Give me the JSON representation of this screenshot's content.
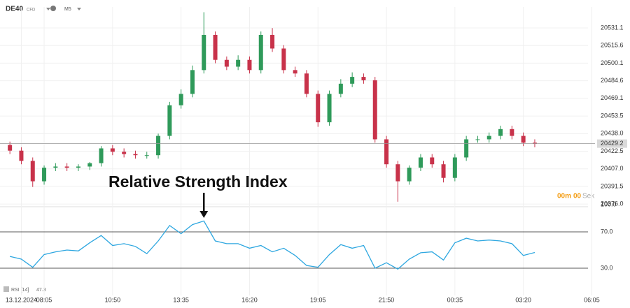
{
  "header": {
    "symbol": "DE40",
    "instrument_type": "CFD",
    "timeframe": "M5"
  },
  "chart_data": [
    {
      "type": "candlestick",
      "categories": [
        null,
        "13.12.2024",
        null,
        "08:05",
        null,
        null,
        null,
        null,
        null,
        "10:50",
        null,
        null,
        null,
        null,
        null,
        "13:35",
        null,
        null,
        null,
        null,
        null,
        "16:20",
        null,
        null,
        null,
        null,
        null,
        "19:05",
        null,
        null,
        null,
        null,
        null,
        "21:50",
        null,
        null,
        null,
        null,
        null,
        "00:35",
        null,
        null,
        null,
        null,
        null,
        "03:20",
        null,
        null,
        null,
        null,
        null,
        "06:05"
      ],
      "open": [
        20428,
        20423,
        20414,
        20396,
        20408,
        20409,
        20408,
        20409,
        20412,
        20425,
        20422,
        20420,
        20419,
        20419,
        20436,
        20463,
        20473,
        20494,
        20525,
        20503,
        20497,
        20503,
        20494,
        20525,
        20513,
        20494,
        20491,
        20473,
        20448,
        20473,
        20482,
        20488,
        20485,
        20433,
        20411,
        20396,
        20408,
        20417,
        20411,
        20399,
        20417,
        20433,
        20433,
        20436,
        20442,
        20436,
        20430,
        null,
        null,
        null,
        null,
        null
      ],
      "high": [
        20431,
        20426,
        20417,
        20410,
        20412,
        20412,
        20411,
        20413,
        20427,
        20428,
        20425,
        20423,
        20422,
        20438,
        20466,
        20477,
        20498,
        20545,
        20528,
        20506,
        20507,
        20506,
        20528,
        20531,
        20516,
        20497,
        20494,
        20476,
        20476,
        20486,
        20492,
        20491,
        20488,
        20436,
        20414,
        20410,
        20420,
        20420,
        20414,
        20420,
        20436,
        20436,
        20439,
        20445,
        20445,
        20439,
        20433,
        null,
        null,
        null,
        null,
        null
      ],
      "low": [
        20420,
        20411,
        20391,
        20393,
        20405,
        20405,
        20405,
        20406,
        20409,
        20419,
        20417,
        20416,
        20416,
        20416,
        20433,
        20460,
        20470,
        20491,
        20500,
        20494,
        20494,
        20491,
        20491,
        20510,
        20491,
        20488,
        20470,
        20444,
        20445,
        20470,
        20479,
        20482,
        20430,
        20408,
        20378,
        20393,
        20405,
        20408,
        20395,
        20396,
        20414,
        20430,
        20430,
        20433,
        20433,
        20427,
        20426,
        null,
        null,
        null,
        null,
        null
      ],
      "close": [
        20423,
        20414,
        20396,
        20408,
        20409,
        20408,
        20409,
        20412,
        20425,
        20422,
        20420,
        20419,
        20419,
        20436,
        20463,
        20473,
        20494,
        20525,
        20503,
        20497,
        20503,
        20494,
        20525,
        20513,
        20494,
        20491,
        20473,
        20448,
        20473,
        20482,
        20488,
        20485,
        20433,
        20411,
        20396,
        20408,
        20417,
        20411,
        20399,
        20417,
        20433,
        20433,
        20436,
        20442,
        20436,
        20430,
        20429.2,
        null,
        null,
        null,
        null,
        null
      ],
      "up_color": "#2f9a5a",
      "down_color": "#c8324a",
      "ylim": [
        20374.2,
        20549.6
      ],
      "yticks": [
        {
          "value": 20376,
          "label": "20376.0"
        },
        20391.5,
        {
          "value": 20407,
          "label": "20407.0"
        },
        20422.5,
        {
          "value": 20438,
          "label": "20438.0"
        },
        20453.5,
        20469.1,
        20484.6,
        20500.1,
        20515.6,
        20531.1
      ],
      "last_price": 20429.2,
      "countdown": {
        "minutes": "00m",
        "seconds": "00",
        "seconds_unit": "Sek"
      },
      "grid": true
    },
    {
      "type": "line",
      "name": "RSI [14]",
      "color": "#2ea7e0",
      "values": [
        43,
        40,
        31,
        45,
        48,
        50,
        49,
        58,
        66,
        55,
        57,
        54,
        46,
        60,
        77,
        68,
        78,
        82,
        60,
        57,
        57,
        52,
        55,
        48,
        52,
        44,
        33,
        31,
        45,
        56,
        52,
        55,
        30,
        36,
        29,
        40,
        47,
        48,
        39,
        58,
        63,
        60,
        61,
        60,
        57,
        44,
        47.3
      ],
      "ylim": [
        0,
        100
      ],
      "yticks": [
        {
          "value": 100,
          "label": "100.0"
        },
        {
          "value": 70,
          "label": "70.0"
        },
        {
          "value": 30,
          "label": "30.0"
        }
      ],
      "annotation": {
        "text": "Relative Strength Index",
        "index": 17
      }
    }
  ]
}
